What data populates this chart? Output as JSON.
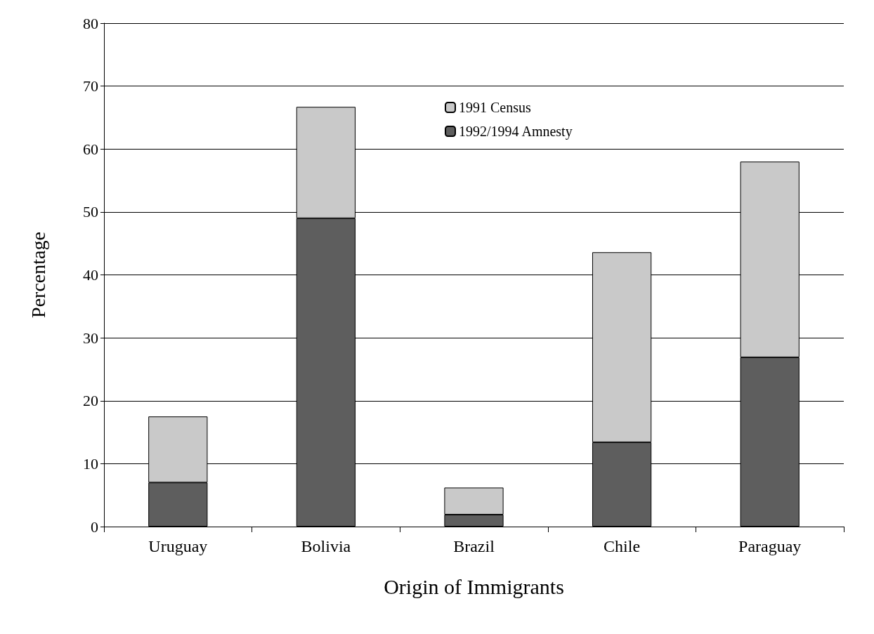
{
  "chart_data": {
    "type": "bar",
    "stacked": true,
    "xlabel": "Origin of Immigrants",
    "ylabel": "Percentage",
    "categories": [
      "Uruguay",
      "Bolivia",
      "Brazil",
      "Chile",
      "Paraguay"
    ],
    "series": [
      {
        "name": "1992/1994 Amnesty",
        "color": "#5e5e5e",
        "values": [
          7.0,
          49.0,
          1.9,
          13.4,
          26.9
        ]
      },
      {
        "name": "1991 Census",
        "color": "#c9c9c9",
        "values": [
          10.5,
          17.7,
          4.3,
          30.2,
          31.1
        ]
      }
    ],
    "ylim": [
      0,
      80
    ],
    "yticks": [
      0,
      10,
      20,
      30,
      40,
      50,
      60,
      70,
      80
    ],
    "grid": "y",
    "legend": "top"
  }
}
